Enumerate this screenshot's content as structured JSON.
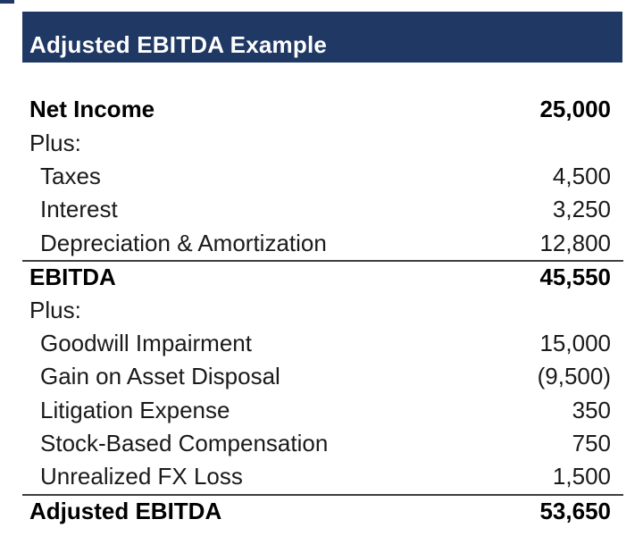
{
  "title_bar": {
    "title": "Adjusted EBITDA Example"
  },
  "colors": {
    "banner_bg": "#1f3864",
    "banner_text": "#ffffff",
    "body_text": "#1a1a1a",
    "rule_line": "#3f3f3f",
    "background": "#ffffff"
  },
  "table": {
    "rows": [
      {
        "label": "Net Income",
        "value": "25,000",
        "style": "bold",
        "indent": 0,
        "border_top": false
      },
      {
        "label": "Plus:",
        "value": "",
        "style": "normal",
        "indent": 0,
        "border_top": false
      },
      {
        "label": "Taxes",
        "value": "4,500",
        "style": "normal",
        "indent": 1,
        "border_top": false
      },
      {
        "label": "Interest",
        "value": "3,250",
        "style": "normal",
        "indent": 1,
        "border_top": false
      },
      {
        "label": "Depreciation & Amortization",
        "value": "12,800",
        "style": "normal",
        "indent": 1,
        "border_top": false
      },
      {
        "label": "EBITDA",
        "value": "45,550",
        "style": "bold",
        "indent": 0,
        "border_top": true
      },
      {
        "label": "Plus:",
        "value": "",
        "style": "normal",
        "indent": 0,
        "border_top": false
      },
      {
        "label": "Goodwill Impairment",
        "value": "15,000",
        "style": "normal",
        "indent": 1,
        "border_top": false
      },
      {
        "label": "Gain on Asset Disposal",
        "value": "(9,500)",
        "style": "normal",
        "indent": 1,
        "border_top": false
      },
      {
        "label": "Litigation Expense",
        "value": "350",
        "style": "normal",
        "indent": 1,
        "border_top": false
      },
      {
        "label": "Stock-Based Compensation",
        "value": "750",
        "style": "normal",
        "indent": 1,
        "border_top": false
      },
      {
        "label": "Unrealized FX Loss",
        "value": "1,500",
        "style": "normal",
        "indent": 1,
        "border_top": false
      },
      {
        "label": "Adjusted EBITDA",
        "value": "53,650",
        "style": "bold",
        "indent": 0,
        "border_top": true
      }
    ]
  }
}
